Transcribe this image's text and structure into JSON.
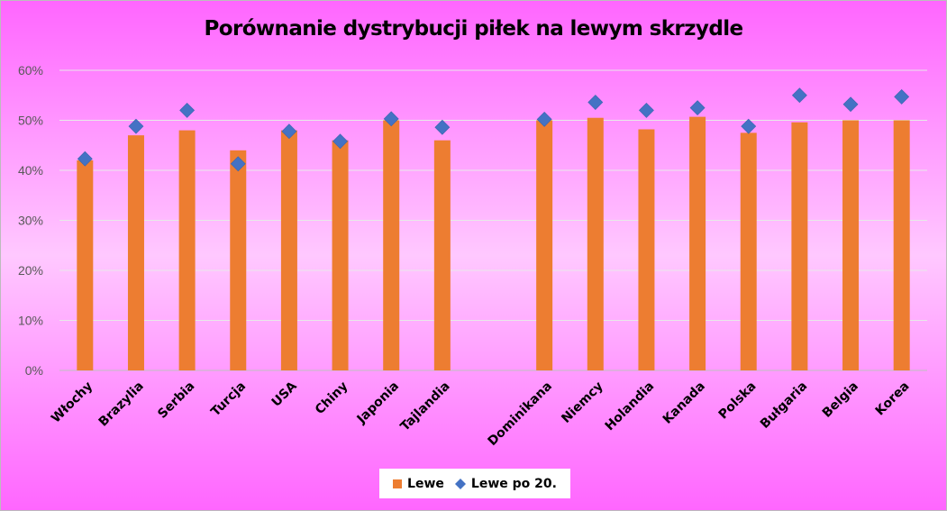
{
  "chart_data": {
    "type": "bar",
    "title": "Porównanie dystrybucji piłek na lewym skrzydle",
    "categories": [
      "Włochy",
      "Brazylia",
      "Serbia",
      "Turcja",
      "USA",
      "Chiny",
      "Japonia",
      "Tajlandia",
      "",
      "Dominikana",
      "Niemcy",
      "Holandia",
      "Kanada",
      "Polska",
      "Bułgaria",
      "Belgia",
      "Korea"
    ],
    "series": [
      {
        "name": "Lewe",
        "type": "bar",
        "color": "#ed7d31",
        "values": [
          42,
          47,
          48,
          44,
          48,
          46,
          50,
          46,
          null,
          50,
          50.5,
          48.2,
          50.7,
          47.5,
          49.6,
          50,
          50
        ]
      },
      {
        "name": "Lewe po 20.",
        "type": "scatter",
        "marker": "diamond",
        "color": "#4472c4",
        "values": [
          42.3,
          48.8,
          52,
          41.3,
          47.8,
          45.8,
          50.3,
          48.6,
          null,
          50.2,
          53.6,
          52,
          52.5,
          48.8,
          55,
          53.2,
          54.7
        ]
      }
    ],
    "ylim": [
      0,
      60
    ],
    "yticks": [
      "0%",
      "10%",
      "20%",
      "30%",
      "40%",
      "50%",
      "60%"
    ],
    "y_format": "percent",
    "grid": true,
    "legend_position": "bottom"
  }
}
